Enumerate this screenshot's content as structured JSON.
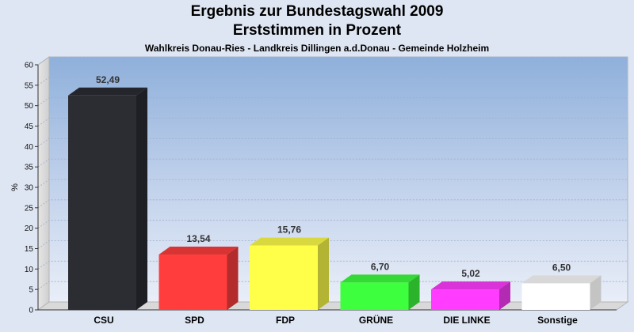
{
  "chart_data": {
    "type": "bar",
    "title": "Ergebnis zur Bundestagswahl 2009",
    "title_line2": "Erststimmen in Prozent",
    "subtitle": "Wahlkreis Donau-Ries - Landkreis Dillingen a.d.Donau - Gemeinde Holzheim",
    "ylabel": "%",
    "ylim": [
      0,
      60
    ],
    "yticks": [
      0,
      5,
      10,
      15,
      20,
      25,
      30,
      35,
      40,
      45,
      50,
      55,
      60
    ],
    "grid": true,
    "categories": [
      "CSU",
      "SPD",
      "FDP",
      "GRÜNE",
      "DIE LINKE",
      "Sonstige"
    ],
    "values": [
      52.49,
      13.54,
      15.76,
      6.7,
      5.02,
      6.5
    ],
    "value_labels": [
      "52,49",
      "13,54",
      "15,76",
      "6,70",
      "5,02",
      "6,50"
    ],
    "colors": [
      "#2b2d33",
      "#ff3d3d",
      "#ffff4a",
      "#3eff3e",
      "#ff3cff",
      "#ffffff"
    ]
  }
}
